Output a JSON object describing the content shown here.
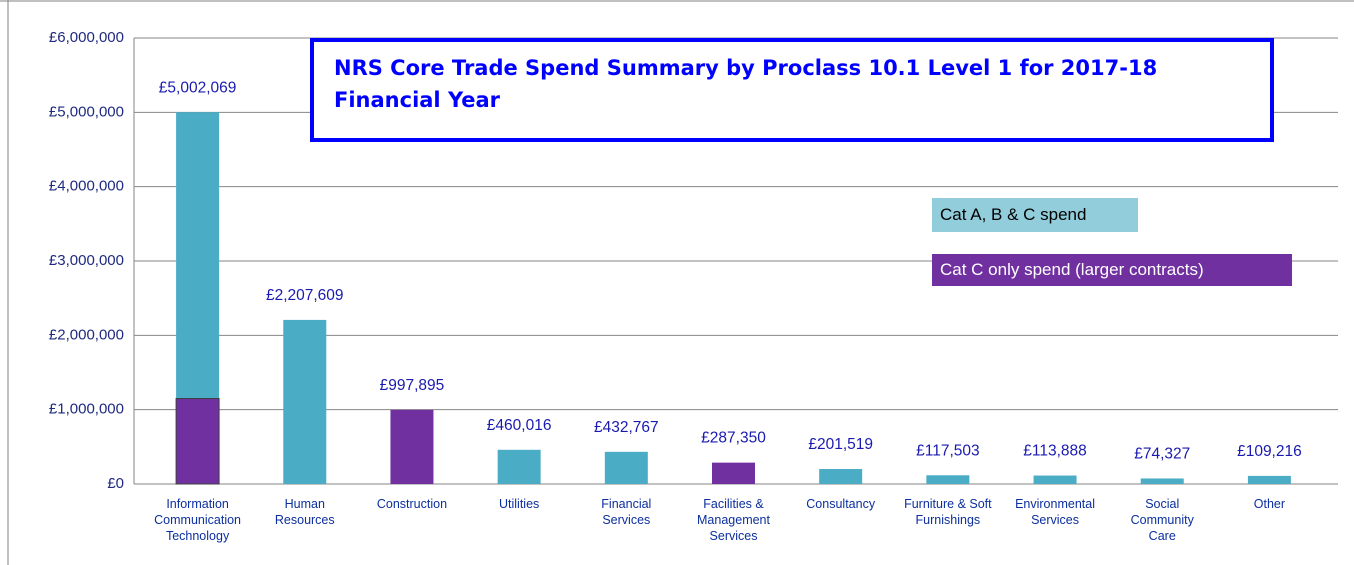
{
  "chart_data": {
    "type": "bar",
    "title": "NRS Core Trade Spend Summary by Proclass 10.1 Level 1 for 2017-18 Financial Year",
    "categories": [
      "Information\nCommunication\nTechnology",
      "Human\nResources",
      "Construction",
      "Utilities",
      "Financial\nServices",
      "Facilities &\nManagement\nServices",
      "Consultancy",
      "Furniture & Soft\nFurnishings",
      "Environmental\nServices",
      "Social\nCommunity\nCare",
      "Other"
    ],
    "series": [
      {
        "name": "Cat A, B & C spend",
        "color": "#4bacc6",
        "values": [
          5002069,
          2207609,
          null,
          460016,
          432767,
          null,
          201519,
          117503,
          113888,
          74327,
          109216
        ],
        "value_labels": [
          "£5,002,069",
          "£2,207,609",
          null,
          "£460,016",
          "£432,767",
          null,
          "£201,519",
          "£117,503",
          "£113,888",
          "£74,327",
          "£109,216"
        ]
      },
      {
        "name": "Cat C only spend (larger contracts)",
        "color": "#7030a0",
        "values": [
          1150000,
          null,
          997895,
          null,
          null,
          287350,
          null,
          null,
          null,
          null,
          null
        ],
        "value_labels": [
          null,
          null,
          "£997,895",
          null,
          null,
          "£287,350",
          null,
          null,
          null,
          null,
          null
        ]
      }
    ],
    "ylim": [
      0,
      6000000
    ],
    "yticks": [
      {
        "value": 0,
        "label": "£0"
      },
      {
        "value": 1000000,
        "label": "£1,000,000"
      },
      {
        "value": 2000000,
        "label": "£2,000,000"
      },
      {
        "value": 3000000,
        "label": "£3,000,000"
      },
      {
        "value": 4000000,
        "label": "£4,000,000"
      },
      {
        "value": 5000000,
        "label": "£5,000,000"
      },
      {
        "value": 6000000,
        "label": "£6,000,000"
      }
    ],
    "grid": true
  }
}
